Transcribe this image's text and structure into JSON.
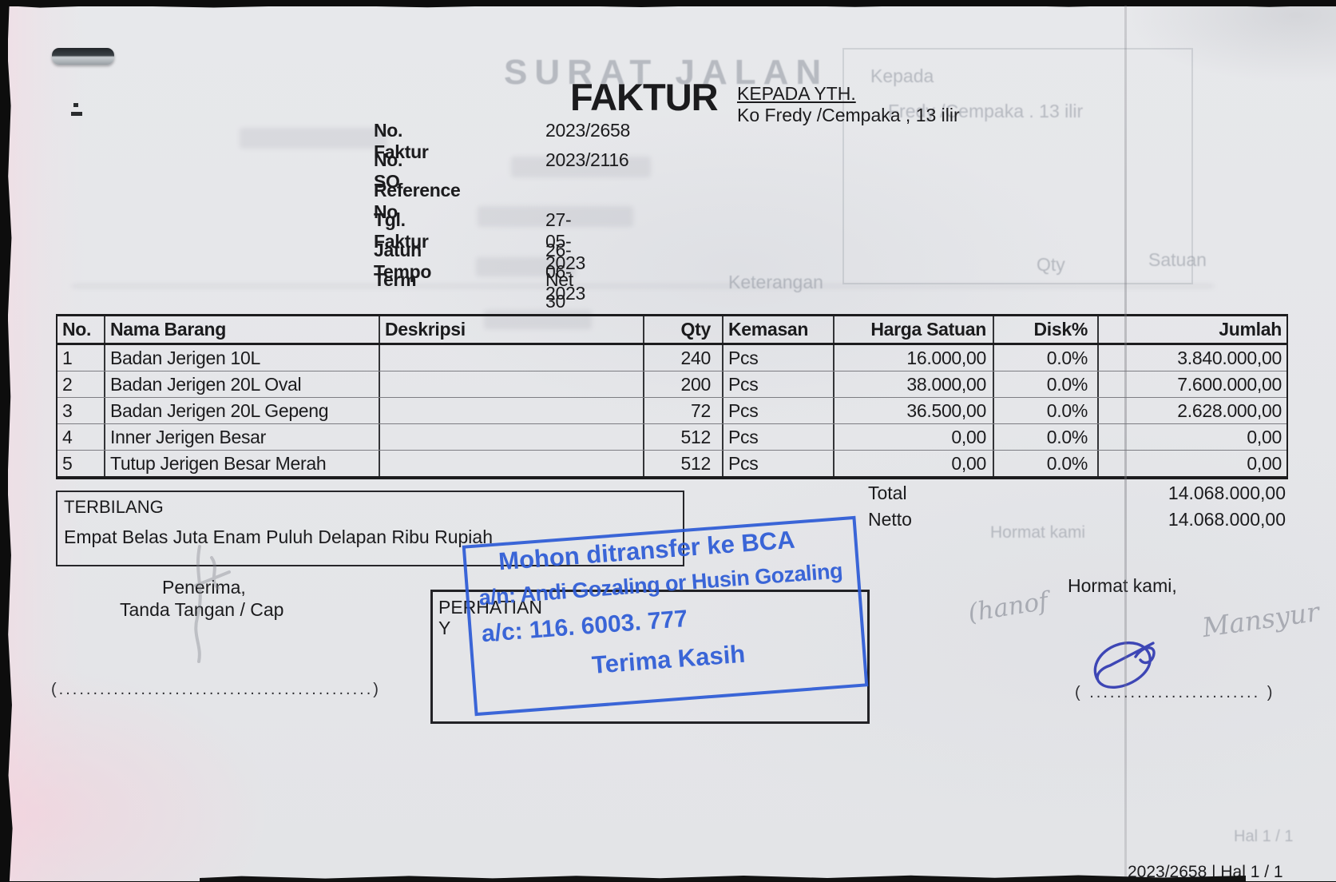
{
  "header": {
    "title": "FAKTUR",
    "recipient_label": "KEPADA YTH.",
    "recipient_name": "Ko Fredy /Cempaka , 13 ilir",
    "meta": [
      {
        "label": "No. Faktur",
        "value": "2023/2658"
      },
      {
        "label": "No. SO",
        "value": "2023/2116"
      },
      {
        "label": "Reference No",
        "value": ""
      },
      {
        "label": "Tgl. Faktur",
        "value": "27-05-2023"
      },
      {
        "label": "Jatuh Tempo",
        "value": "26-06-2023"
      },
      {
        "label": "Term",
        "value": "Net 30"
      }
    ]
  },
  "table": {
    "columns": [
      "No.",
      "Nama Barang",
      "Deskripsi",
      "Qty",
      "Kemasan",
      "Harga Satuan",
      "Disk%",
      "Jumlah"
    ],
    "rows": [
      [
        "1",
        "Badan Jerigen 10L",
        "",
        "240",
        "Pcs",
        "16.000,00",
        "0.0%",
        "3.840.000,00"
      ],
      [
        "2",
        "Badan Jerigen 20L Oval",
        "",
        "200",
        "Pcs",
        "38.000,00",
        "0.0%",
        "7.600.000,00"
      ],
      [
        "3",
        "Badan Jerigen 20L Gepeng",
        "",
        "72",
        "Pcs",
        "36.500,00",
        "0.0%",
        "2.628.000,00"
      ],
      [
        "4",
        "Inner Jerigen Besar",
        "",
        "512",
        "Pcs",
        "0,00",
        "0.0%",
        "0,00"
      ],
      [
        "5",
        "Tutup Jerigen Besar Merah",
        "",
        "512",
        "Pcs",
        "0,00",
        "0.0%",
        "0,00"
      ]
    ]
  },
  "terbilang": {
    "label": "TERBILANG",
    "text": "Empat Belas Juta Enam Puluh Delapan Ribu Rupiah"
  },
  "totals": [
    {
      "label": "Total",
      "value": "14.068.000,00"
    },
    {
      "label": "Netto",
      "value": "14.068.000,00"
    }
  ],
  "attention_box": {
    "line1": "PERHATIAN",
    "line2": "Y"
  },
  "stamp": {
    "line1": "Mohon ditransfer ke BCA",
    "line2": "a/n: Andi Gozaling or Husin Gozaling",
    "line3": "a/c: 116. 6003. 777",
    "line4": "Terima Kasih",
    "ink_color": "#2e5cd6"
  },
  "signatures": {
    "left_title": "Penerima,",
    "left_caption": "Tanda Tangan / Cap",
    "left_sign_line": "(..............................................)",
    "right_title": "Hormat kami,",
    "right_sign_line": "( ......................... )",
    "pencil_left": "(hanof",
    "pencil_right": "Mansyur",
    "signature_ink_color": "#3d46b5"
  },
  "footer": {
    "page_info": "2023/2658 | Hal 1 / 1"
  },
  "ghost_bleedthrough": {
    "title": "SURAT JALAN",
    "kepada_label": "Kepada",
    "kepada_value": "Fredy /Cempaka . 13 ilir",
    "col_keterangan": "Keterangan",
    "col_qty": "Qty",
    "col_satuan": "Satuan",
    "hormat": "Hormat kami",
    "hal": "Hal 1 / 1"
  }
}
